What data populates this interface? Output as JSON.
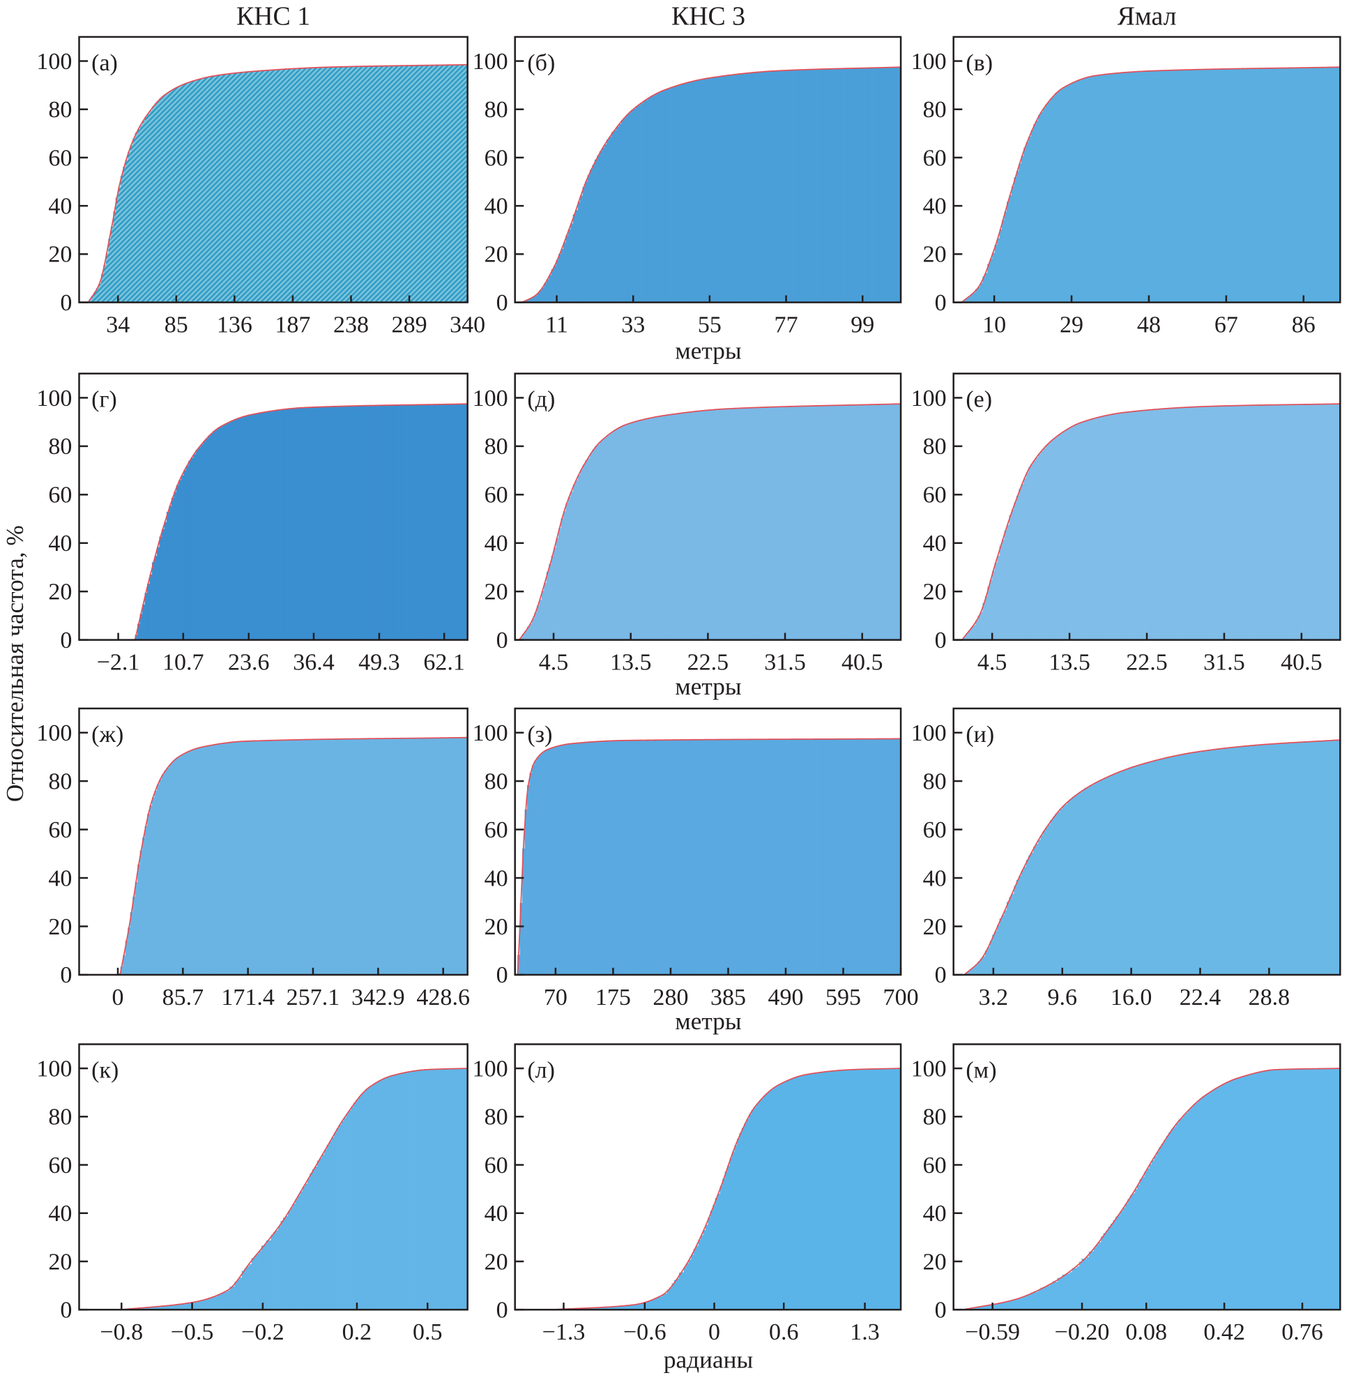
{
  "chart_data": {
    "type": "bar",
    "column_titles": [
      "КНС 1",
      "КНС 3",
      "Ямал"
    ],
    "ylabel": "Относительная частота, %",
    "xlabels": [
      "метры",
      "метры",
      "метры",
      "радианы"
    ],
    "ylim": [
      0,
      110
    ],
    "yticks": [
      0,
      20,
      40,
      60,
      80,
      100
    ],
    "colors": {
      "curve": "#e0515a",
      "axis": "#231f20"
    },
    "panels": [
      {
        "label": "(а)",
        "xlim": [
          0,
          340
        ],
        "xticks": [
          "34",
          "85",
          "136",
          "187",
          "238",
          "289",
          "340"
        ],
        "xtick_values": [
          34,
          85,
          136,
          187,
          238,
          289,
          340
        ],
        "color": "#3fa7cc",
        "hatched": true,
        "cdf": [
          [
            8,
            0
          ],
          [
            18,
            8
          ],
          [
            28,
            30
          ],
          [
            36,
            50
          ],
          [
            48,
            68
          ],
          [
            60,
            78
          ],
          [
            75,
            86
          ],
          [
            95,
            91
          ],
          [
            120,
            94
          ],
          [
            160,
            96
          ],
          [
            220,
            97.5
          ],
          [
            340,
            98.5
          ]
        ]
      },
      {
        "label": "(б)",
        "xlim": [
          -1,
          110
        ],
        "xticks": [
          "11",
          "33",
          "55",
          "77",
          "99"
        ],
        "xtick_values": [
          11,
          33,
          55,
          77,
          99
        ],
        "color": "#4a9fd8",
        "cdf": [
          [
            1,
            0
          ],
          [
            5,
            3
          ],
          [
            10,
            14
          ],
          [
            15,
            32
          ],
          [
            20,
            52
          ],
          [
            26,
            68
          ],
          [
            33,
            80
          ],
          [
            42,
            88
          ],
          [
            55,
            93
          ],
          [
            75,
            96
          ],
          [
            110,
            97.5
          ]
        ]
      },
      {
        "label": "(в)",
        "xlim": [
          0,
          95
        ],
        "xticks": [
          "10",
          "29",
          "48",
          "67",
          "86"
        ],
        "xtick_values": [
          10,
          29,
          48,
          67,
          86
        ],
        "color": "#5aaee0",
        "cdf": [
          [
            2,
            0
          ],
          [
            6,
            6
          ],
          [
            10,
            22
          ],
          [
            14,
            45
          ],
          [
            18,
            66
          ],
          [
            22,
            80
          ],
          [
            27,
            89
          ],
          [
            35,
            94
          ],
          [
            50,
            96
          ],
          [
            95,
            97.5
          ]
        ]
      },
      {
        "label": "(г)",
        "xlim": [
          -9.8,
          66.7
        ],
        "xticks": [
          "−2.1",
          "10.7",
          "23.6",
          "36.4",
          "49.3",
          "62.1"
        ],
        "xtick_values": [
          -2.1,
          10.7,
          23.6,
          36.4,
          49.3,
          62.1
        ],
        "color": "#3a8fd0",
        "cdf": [
          [
            1.2,
            0
          ],
          [
            4,
            25
          ],
          [
            7,
            48
          ],
          [
            10,
            66
          ],
          [
            14,
            80
          ],
          [
            18,
            88
          ],
          [
            24,
            93
          ],
          [
            35,
            96
          ],
          [
            66.7,
            97.5
          ]
        ]
      },
      {
        "label": "(д)",
        "xlim": [
          0,
          45
        ],
        "xticks": [
          "4.5",
          "13.5",
          "22.5",
          "31.5",
          "40.5"
        ],
        "xtick_values": [
          4.5,
          13.5,
          22.5,
          31.5,
          40.5
        ],
        "color": "#7ab8e6",
        "cdf": [
          [
            0.5,
            0
          ],
          [
            2,
            8
          ],
          [
            4,
            30
          ],
          [
            6,
            56
          ],
          [
            8,
            72
          ],
          [
            10,
            82
          ],
          [
            13,
            89
          ],
          [
            18,
            93
          ],
          [
            25,
            95.5
          ],
          [
            45,
            97.5
          ]
        ]
      },
      {
        "label": "(е)",
        "xlim": [
          0,
          45
        ],
        "xticks": [
          "4.5",
          "13.5",
          "22.5",
          "31.5",
          "40.5"
        ],
        "xtick_values": [
          4.5,
          13.5,
          22.5,
          31.5,
          40.5
        ],
        "color": "#80bde8",
        "cdf": [
          [
            1,
            0
          ],
          [
            3,
            10
          ],
          [
            5,
            33
          ],
          [
            7,
            55
          ],
          [
            9,
            72
          ],
          [
            12,
            84
          ],
          [
            15,
            90
          ],
          [
            20,
            94
          ],
          [
            30,
            96.5
          ],
          [
            45,
            97.5
          ]
        ]
      },
      {
        "label": "(ж)",
        "xlim": [
          -51,
          460.7
        ],
        "xticks": [
          "0",
          "85.7",
          "171.4",
          "257.1",
          "342.9",
          "428.6"
        ],
        "xtick_values": [
          0,
          85.7,
          171.4,
          257.1,
          342.9,
          428.6
        ],
        "color": "#6ab4e4",
        "cdf": [
          [
            3,
            0
          ],
          [
            15,
            20
          ],
          [
            30,
            50
          ],
          [
            45,
            72
          ],
          [
            60,
            83
          ],
          [
            80,
            90
          ],
          [
            110,
            94
          ],
          [
            170,
            96.5
          ],
          [
            460,
            98
          ]
        ]
      },
      {
        "label": "(з)",
        "xlim": [
          -4,
          700
        ],
        "xticks": [
          "70",
          "175",
          "280",
          "385",
          "490",
          "595",
          "700"
        ],
        "xtick_values": [
          70,
          175,
          280,
          385,
          490,
          595,
          700
        ],
        "color": "#5aa9e0",
        "cdf": [
          [
            1,
            0
          ],
          [
            6,
            25
          ],
          [
            12,
            55
          ],
          [
            20,
            78
          ],
          [
            32,
            88
          ],
          [
            55,
            93
          ],
          [
            100,
            95.5
          ],
          [
            200,
            96.8
          ],
          [
            700,
            97.5
          ]
        ]
      },
      {
        "label": "(и)",
        "xlim": [
          -0.5,
          35.4
        ],
        "xticks": [
          "3.2",
          "9.6",
          "16.0",
          "22.4",
          "28.8"
        ],
        "xtick_values": [
          3.2,
          9.6,
          16.0,
          22.4,
          28.8
        ],
        "color": "#6ab8e6",
        "cdf": [
          [
            0.5,
            0
          ],
          [
            2,
            6
          ],
          [
            4,
            24
          ],
          [
            6,
            44
          ],
          [
            8,
            60
          ],
          [
            10,
            71
          ],
          [
            13,
            80
          ],
          [
            17,
            87
          ],
          [
            22,
            92
          ],
          [
            28,
            95
          ],
          [
            35.4,
            97
          ]
        ]
      },
      {
        "label": "(к)",
        "xlim": [
          -0.98,
          0.67
        ],
        "xticks": [
          "−0.8",
          "−0.5",
          "−0.2",
          "0.2",
          "0.5"
        ],
        "xtick_values": [
          -0.8,
          -0.5,
          -0.2,
          0.2,
          0.5
        ],
        "color": "#62b5e6",
        "cdf": [
          [
            -0.8,
            0
          ],
          [
            -0.5,
            3
          ],
          [
            -0.35,
            8
          ],
          [
            -0.25,
            20
          ],
          [
            -0.12,
            36
          ],
          [
            -0.02,
            52
          ],
          [
            0.07,
            67
          ],
          [
            0.15,
            80
          ],
          [
            0.25,
            92
          ],
          [
            0.35,
            97
          ],
          [
            0.5,
            99.5
          ],
          [
            0.67,
            100
          ]
        ]
      },
      {
        "label": "(л)",
        "xlim": [
          -1.72,
          1.61
        ],
        "xticks": [
          "−1.3",
          "−0.6",
          "0",
          "0.6",
          "1.3"
        ],
        "xtick_values": [
          -1.3,
          -0.6,
          0,
          0.6,
          1.3
        ],
        "color": "#5ab4e8",
        "cdf": [
          [
            -1.4,
            0
          ],
          [
            -0.7,
            2
          ],
          [
            -0.45,
            6
          ],
          [
            -0.25,
            18
          ],
          [
            -0.1,
            32
          ],
          [
            0.05,
            50
          ],
          [
            0.2,
            70
          ],
          [
            0.35,
            84
          ],
          [
            0.55,
            93
          ],
          [
            0.8,
            97.5
          ],
          [
            1.2,
            99.5
          ],
          [
            1.61,
            100
          ]
        ]
      },
      {
        "label": "(м)",
        "xlim": [
          -0.76,
          0.925
        ],
        "xticks": [
          "−0.59",
          "−0.20",
          "0.08",
          "0.42",
          "0.76"
        ],
        "xtick_values": [
          -0.59,
          -0.2,
          0.08,
          0.42,
          0.76
        ],
        "color": "#62b8ea",
        "cdf": [
          [
            -0.72,
            0
          ],
          [
            -0.5,
            4
          ],
          [
            -0.35,
            10
          ],
          [
            -0.2,
            20
          ],
          [
            -0.08,
            34
          ],
          [
            0.02,
            48
          ],
          [
            0.12,
            64
          ],
          [
            0.22,
            78
          ],
          [
            0.34,
            89
          ],
          [
            0.48,
            96
          ],
          [
            0.65,
            99.5
          ],
          [
            0.925,
            100
          ]
        ]
      }
    ]
  }
}
